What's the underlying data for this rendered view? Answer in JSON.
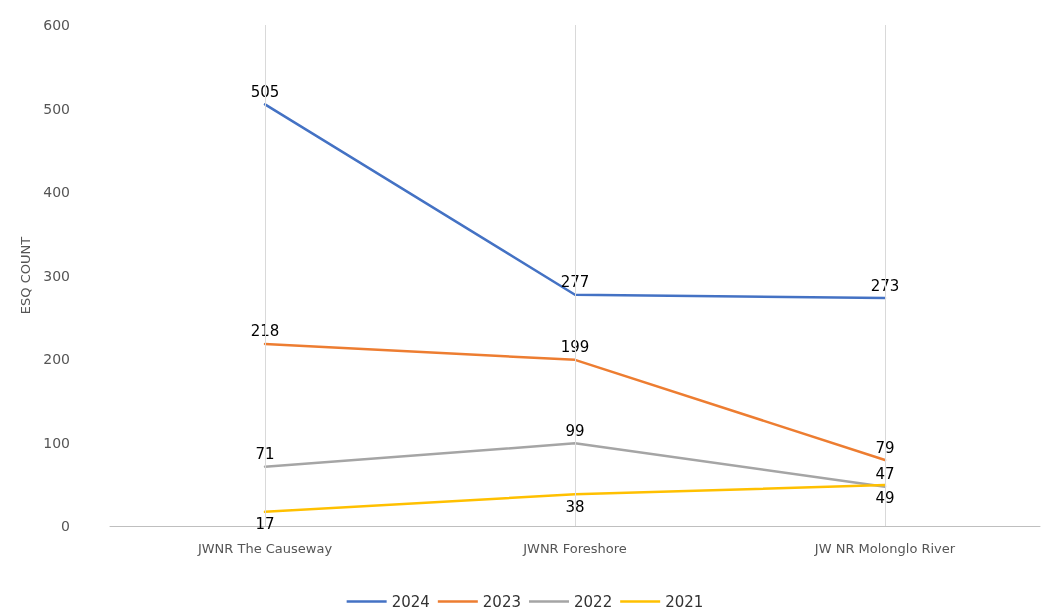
{
  "chart_data": {
    "type": "line",
    "ylabel": "ESQ COUNT",
    "categories": [
      "JWNR The Causeway",
      "JWNR Foreshore",
      "JW NR Molonglo River"
    ],
    "series": [
      {
        "name": "2024",
        "color": "#4472c4",
        "values": [
          505,
          277,
          273
        ]
      },
      {
        "name": "2023",
        "color": "#ed7d31",
        "values": [
          218,
          199,
          79
        ]
      },
      {
        "name": "2022",
        "color": "#a5a5a5",
        "values": [
          71,
          99,
          47
        ]
      },
      {
        "name": "2021",
        "color": "#ffc000",
        "values": [
          17,
          38,
          49
        ]
      }
    ],
    "ylim": [
      0,
      600
    ],
    "yticks": [
      0,
      100,
      200,
      300,
      400,
      500,
      600
    ],
    "grid": "x",
    "legend": "bottom",
    "marker": "none",
    "line_style": "solid",
    "data_labels": true
  }
}
